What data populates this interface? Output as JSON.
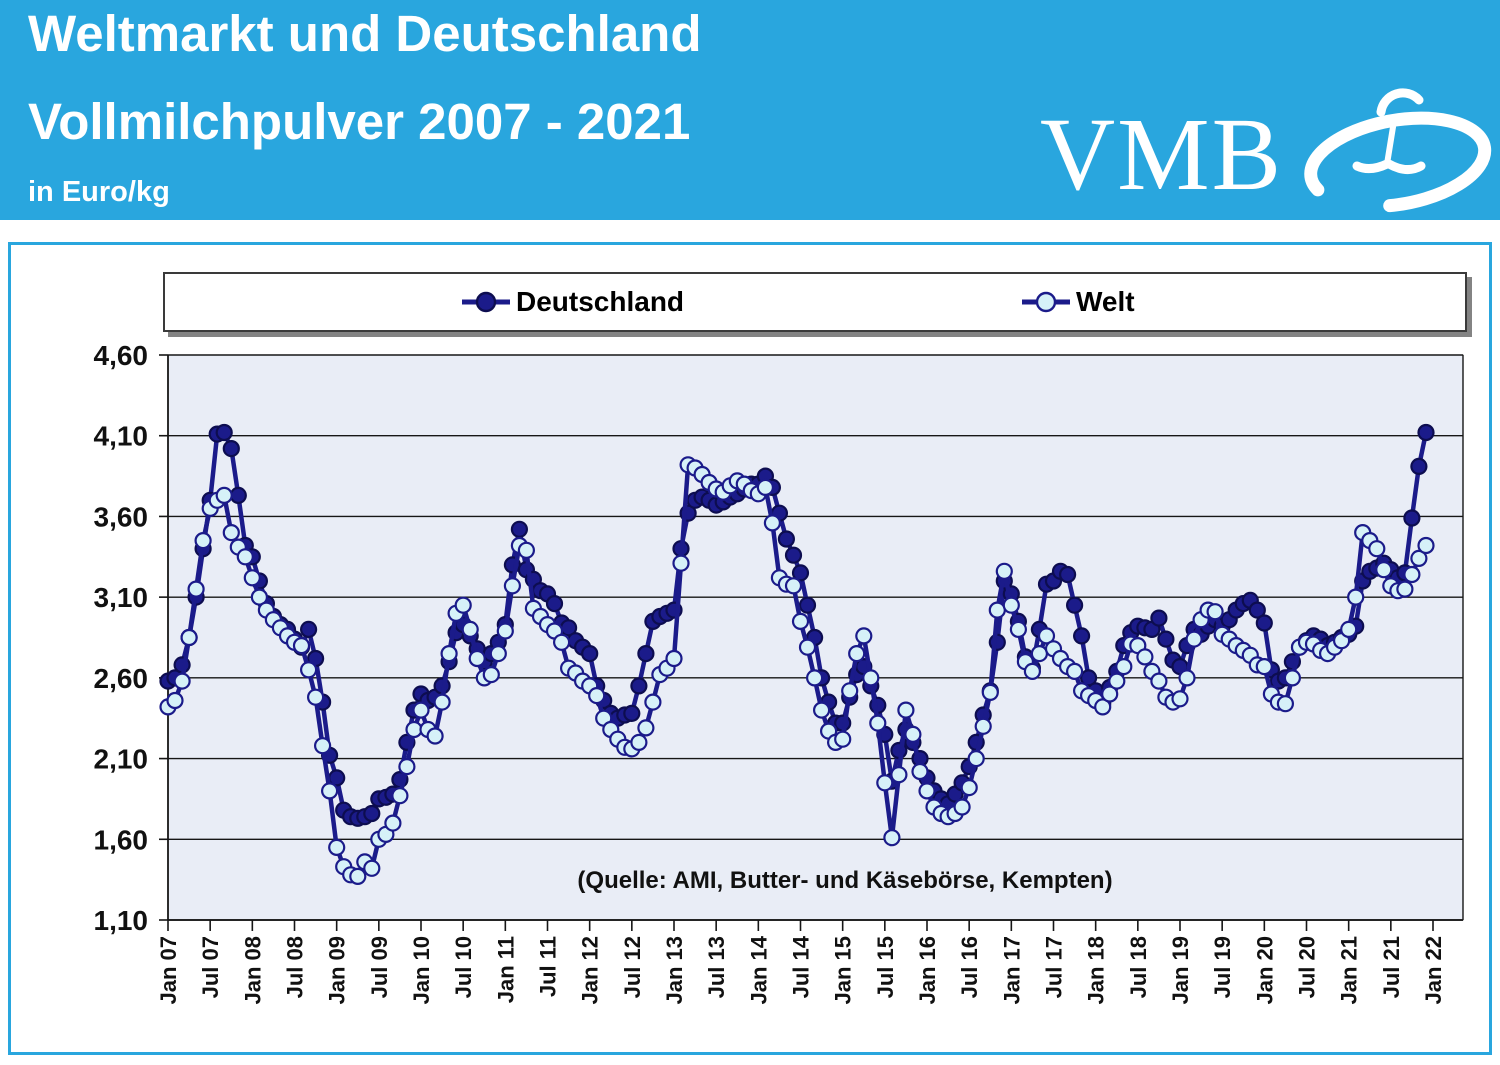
{
  "header": {
    "title_line1": "Weltmarkt und Deutschland",
    "title_line2": "Vollmilchpulver 2007 - 2021",
    "unit_label": "in Euro/kg",
    "logo_text": "VMB",
    "background_color": "#29A6DE",
    "text_color": "#FFFFFF"
  },
  "panel": {
    "border_color": "#29A6DE"
  },
  "legend": {
    "entries": [
      {
        "label": "Deutschland",
        "marker": "navy-filled-circle"
      },
      {
        "label": "Welt",
        "marker": "light-blue-circle"
      }
    ]
  },
  "chart_data": {
    "type": "line",
    "unit": "Euro/kg",
    "start_month": "Jan 2007",
    "end_month": "Dez 2021",
    "frequency": "monthly",
    "grid": true,
    "legend_position": "top",
    "plot_background": "#E9EDF6",
    "gridline_color": "#161616",
    "annotation": "(Quelle: AMI, Butter- und Käsebörse, Kempten)",
    "y_axis": {
      "min": 1.1,
      "max": 4.6,
      "step": 0.5,
      "tick_labels": [
        "4,60",
        "4,10",
        "3,60",
        "3,10",
        "2,60",
        "2,10",
        "1,60",
        "1,10"
      ]
    },
    "x_axis": {
      "tick_labels": [
        "Jan 07",
        "Jul 07",
        "Jan 08",
        "Jul 08",
        "Jan 09",
        "Jul 09",
        "Jan 10",
        "Jul 10",
        "Jan 11",
        "Jul 11",
        "Jan 12",
        "Jul 12",
        "Jan 13",
        "Jul 13",
        "Jan 14",
        "Jul 14",
        "Jan 15",
        "Jul 15",
        "Jan 16",
        "Jul 16",
        "Jan 17",
        "Jul 17",
        "Jan 18",
        "Jul 18",
        "Jan 19",
        "Jul 19",
        "Jan 20",
        "Jul 20",
        "Jan 21",
        "Jul 21",
        "Jan 22"
      ]
    },
    "series": [
      {
        "name": "Deutschland",
        "line_color": "#1B1B8A",
        "marker_fill": "#1B1B8A",
        "marker_stroke": "#0D0D50",
        "values": [
          2.58,
          2.6,
          2.68,
          2.85,
          3.1,
          3.4,
          3.7,
          4.11,
          4.12,
          4.02,
          3.73,
          3.42,
          3.35,
          3.2,
          3.06,
          2.98,
          2.93,
          2.9,
          2.84,
          2.79,
          2.9,
          2.72,
          2.45,
          2.12,
          1.98,
          1.78,
          1.74,
          1.73,
          1.74,
          1.76,
          1.85,
          1.86,
          1.88,
          1.97,
          2.2,
          2.4,
          2.5,
          2.46,
          2.48,
          2.55,
          2.7,
          2.88,
          2.93,
          2.86,
          2.78,
          2.7,
          2.75,
          2.82,
          2.93,
          3.3,
          3.52,
          3.27,
          3.21,
          3.14,
          3.12,
          3.06,
          2.94,
          2.91,
          2.83,
          2.79,
          2.75,
          2.55,
          2.46,
          2.38,
          2.35,
          2.37,
          2.38,
          2.55,
          2.75,
          2.95,
          2.98,
          3.0,
          3.02,
          3.4,
          3.62,
          3.7,
          3.72,
          3.7,
          3.67,
          3.69,
          3.72,
          3.74,
          3.77,
          3.8,
          3.8,
          3.85,
          3.78,
          3.62,
          3.46,
          3.36,
          3.25,
          3.05,
          2.85,
          2.6,
          2.45,
          2.32,
          2.32,
          2.48,
          2.62,
          2.67,
          2.55,
          2.43,
          2.25,
          1.96,
          2.15,
          2.28,
          2.2,
          2.1,
          1.98,
          1.9,
          1.85,
          1.82,
          1.88,
          1.95,
          2.05,
          2.2,
          2.37,
          2.52,
          2.82,
          3.2,
          3.12,
          2.95,
          2.73,
          2.66,
          2.9,
          3.18,
          3.2,
          3.26,
          3.24,
          3.05,
          2.86,
          2.6,
          2.52,
          2.44,
          2.54,
          2.64,
          2.8,
          2.88,
          2.92,
          2.91,
          2.9,
          2.97,
          2.84,
          2.71,
          2.67,
          2.8,
          2.9,
          2.87,
          2.92,
          2.96,
          2.92,
          2.96,
          3.02,
          3.06,
          3.08,
          3.02,
          2.94,
          2.65,
          2.58,
          2.6,
          2.7,
          2.79,
          2.83,
          2.86,
          2.84,
          2.8,
          2.82,
          2.85,
          2.87,
          2.92,
          3.2,
          3.26,
          3.28,
          3.31,
          3.27,
          3.22,
          3.25,
          3.59,
          3.91,
          4.12
        ]
      },
      {
        "name": "Welt",
        "line_color": "#1B1B8A",
        "marker_fill": "#D6F1F8",
        "marker_stroke": "#1B1B8A",
        "values": [
          2.42,
          2.46,
          2.58,
          2.85,
          3.15,
          3.45,
          3.65,
          3.7,
          3.73,
          3.5,
          3.41,
          3.35,
          3.22,
          3.1,
          3.02,
          2.96,
          2.91,
          2.86,
          2.82,
          2.8,
          2.65,
          2.48,
          2.18,
          1.9,
          1.55,
          1.43,
          1.38,
          1.37,
          1.46,
          1.42,
          1.6,
          1.63,
          1.7,
          1.87,
          2.05,
          2.28,
          2.4,
          2.28,
          2.24,
          2.45,
          2.75,
          3.0,
          3.05,
          2.9,
          2.72,
          2.6,
          2.62,
          2.75,
          2.89,
          3.17,
          3.42,
          3.39,
          3.03,
          2.98,
          2.93,
          2.89,
          2.82,
          2.66,
          2.63,
          2.58,
          2.55,
          2.49,
          2.35,
          2.28,
          2.22,
          2.17,
          2.16,
          2.2,
          2.29,
          2.45,
          2.62,
          2.66,
          2.72,
          3.31,
          3.92,
          3.9,
          3.86,
          3.81,
          3.77,
          3.75,
          3.79,
          3.82,
          3.8,
          3.76,
          3.74,
          3.78,
          3.56,
          3.22,
          3.18,
          3.17,
          2.95,
          2.79,
          2.6,
          2.4,
          2.27,
          2.2,
          2.22,
          2.52,
          2.75,
          2.86,
          2.6,
          2.32,
          1.95,
          1.61,
          2.0,
          2.4,
          2.25,
          2.02,
          1.9,
          1.8,
          1.76,
          1.74,
          1.76,
          1.8,
          1.92,
          2.1,
          2.3,
          2.51,
          3.02,
          3.26,
          3.05,
          2.9,
          2.7,
          2.64,
          2.75,
          2.86,
          2.78,
          2.72,
          2.67,
          2.64,
          2.52,
          2.49,
          2.46,
          2.42,
          2.5,
          2.58,
          2.67,
          2.81,
          2.8,
          2.73,
          2.64,
          2.58,
          2.48,
          2.45,
          2.47,
          2.6,
          2.84,
          2.96,
          3.02,
          3.01,
          2.87,
          2.84,
          2.8,
          2.77,
          2.74,
          2.68,
          2.67,
          2.5,
          2.45,
          2.44,
          2.6,
          2.79,
          2.82,
          2.81,
          2.77,
          2.75,
          2.79,
          2.83,
          2.9,
          3.1,
          3.5,
          3.45,
          3.4,
          3.27,
          3.17,
          3.14,
          3.15,
          3.24,
          3.34,
          3.42
        ]
      }
    ]
  }
}
